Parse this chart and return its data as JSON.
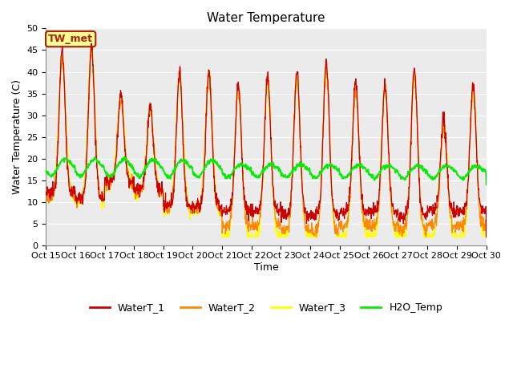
{
  "title": "Water Temperature",
  "ylabel": "Water Temperature (C)",
  "xlabel": "Time",
  "ylim": [
    0,
    50
  ],
  "yticks": [
    0,
    5,
    10,
    15,
    20,
    25,
    30,
    35,
    40,
    45,
    50
  ],
  "annotation_text": "TW_met",
  "annotation_bg": "#FFFF99",
  "annotation_edge": "#AA2200",
  "colors": {
    "WaterT_1": "#CC0000",
    "WaterT_2": "#FF8800",
    "WaterT_3": "#FFFF00",
    "H2O_Temp": "#00EE00"
  },
  "legend_entries": [
    "WaterT_1",
    "WaterT_2",
    "WaterT_3",
    "H2O_Temp"
  ],
  "xtick_labels": [
    "Oct 15",
    "Oct 16",
    "Oct 17",
    "Oct 18",
    "Oct 19",
    "Oct 20",
    "Oct 21",
    "Oct 22",
    "Oct 23",
    "Oct 24",
    "Oct 25",
    "Oct 26",
    "Oct 27",
    "Oct 28",
    "Oct 29",
    "Oct 30"
  ],
  "background_color": "#EBEBEB",
  "fig_bg": "#FFFFFF",
  "title_fontsize": 11,
  "axis_label_fontsize": 9,
  "tick_fontsize": 8,
  "grid_color": "#FFFFFF",
  "n_days": 15
}
